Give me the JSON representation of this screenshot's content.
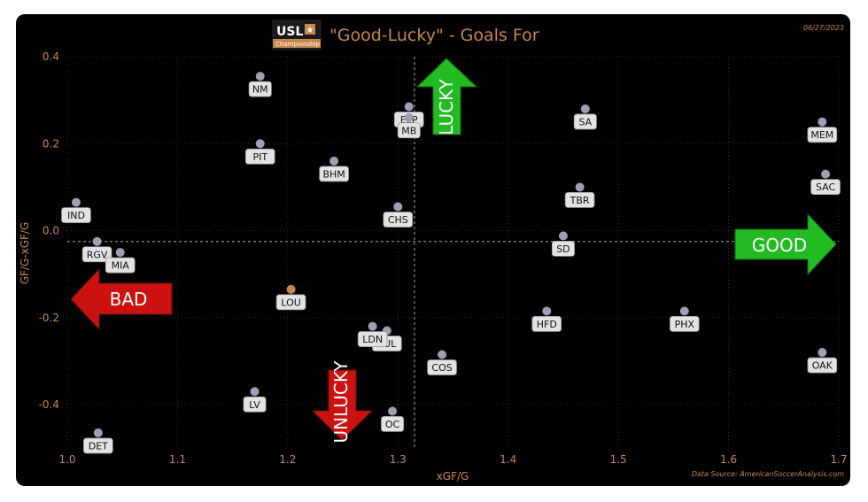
{
  "header": {
    "title": "\"Good-Lucky\" - Goals For",
    "date": "06/27/2023",
    "logo_text": "USL",
    "logo_sub": "Championship"
  },
  "footer": {
    "source": "Data Source: AmericanSoccerAnalysis.com"
  },
  "annotations": {
    "good": "GOOD",
    "bad": "BAD",
    "lucky": "LUCKY",
    "unlucky": "UNLUCKY"
  },
  "colors": {
    "background": "#000000",
    "text_accent": "#c8874a",
    "point": "#9d9fb3",
    "highlight_point": "#c8874a",
    "good_arrow": "#22bb22",
    "bad_arrow": "#cc1111"
  },
  "chart_data": {
    "type": "scatter",
    "title": "\"Good-Lucky\" - Goals For",
    "xlabel": "xGF/G",
    "ylabel": "GF/G-xGF/G",
    "xlim": [
      1.0,
      1.7
    ],
    "ylim": [
      -0.47,
      0.4
    ],
    "xticks": [
      "1.0",
      "1.1",
      "1.2",
      "1.3",
      "1.4",
      "1.5",
      "1.6",
      "1.7"
    ],
    "yticks": [
      "0.4",
      "0.2",
      "0.0",
      "-0.2",
      "-0.4"
    ],
    "reference_lines": {
      "x": 1.315,
      "y": -0.025
    },
    "grid": true,
    "points": [
      {
        "team": "NM",
        "x": 1.175,
        "y": 0.355
      },
      {
        "team": "ELP",
        "x": 1.31,
        "y": 0.285
      },
      {
        "team": "MB",
        "x": 1.31,
        "y": 0.26
      },
      {
        "team": "SA",
        "x": 1.47,
        "y": 0.28
      },
      {
        "team": "MEM",
        "x": 1.685,
        "y": 0.25
      },
      {
        "team": "PIT",
        "x": 1.175,
        "y": 0.2
      },
      {
        "team": "BHM",
        "x": 1.242,
        "y": 0.16
      },
      {
        "team": "SAC",
        "x": 1.688,
        "y": 0.13
      },
      {
        "team": "IND",
        "x": 1.008,
        "y": 0.065
      },
      {
        "team": "TBR",
        "x": 1.465,
        "y": 0.1
      },
      {
        "team": "CHS",
        "x": 1.3,
        "y": 0.055
      },
      {
        "team": "SD",
        "x": 1.45,
        "y": -0.012
      },
      {
        "team": "RGV",
        "x": 1.027,
        "y": -0.025
      },
      {
        "team": "MIA",
        "x": 1.048,
        "y": -0.05
      },
      {
        "team": "LOU",
        "x": 1.203,
        "y": -0.135,
        "highlight": true
      },
      {
        "team": "HFD",
        "x": 1.435,
        "y": -0.185
      },
      {
        "team": "PHX",
        "x": 1.56,
        "y": -0.185
      },
      {
        "team": "TUL",
        "x": 1.29,
        "y": -0.23
      },
      {
        "team": "LDN",
        "x": 1.277,
        "y": -0.22
      },
      {
        "team": "COS",
        "x": 1.34,
        "y": -0.285
      },
      {
        "team": "OAK",
        "x": 1.685,
        "y": -0.28
      },
      {
        "team": "LV",
        "x": 1.17,
        "y": -0.37
      },
      {
        "team": "OC",
        "x": 1.295,
        "y": -0.415
      },
      {
        "team": "DET",
        "x": 1.028,
        "y": -0.465
      }
    ]
  }
}
